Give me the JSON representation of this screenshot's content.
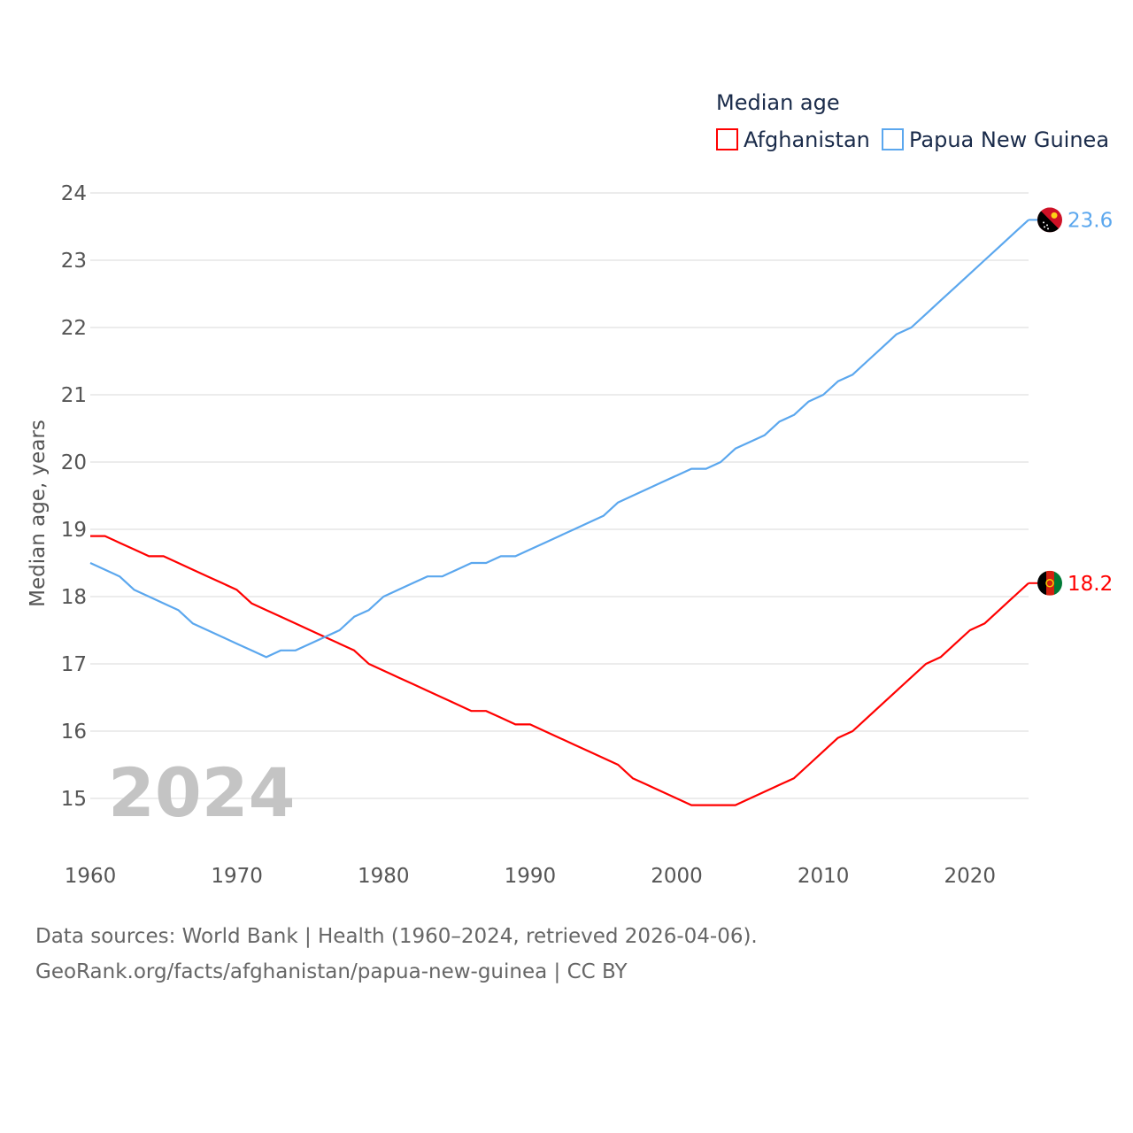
{
  "chart_data": {
    "type": "line",
    "title": "",
    "xlabel": "",
    "ylabel": "Median age, years",
    "xlim": [
      1960,
      2024
    ],
    "ylim": [
      14,
      24
    ],
    "yticks": [
      15,
      16,
      17,
      18,
      19,
      20,
      21,
      22,
      23,
      24
    ],
    "xticks": [
      1960,
      1970,
      1980,
      1990,
      2000,
      2010,
      2020
    ],
    "grid": true,
    "legend": {
      "title": "Median age",
      "placement": "top-right"
    },
    "year_watermark": "2024",
    "x": [
      1960,
      1961,
      1962,
      1963,
      1964,
      1965,
      1966,
      1967,
      1968,
      1969,
      1970,
      1971,
      1972,
      1973,
      1974,
      1975,
      1976,
      1977,
      1978,
      1979,
      1980,
      1981,
      1982,
      1983,
      1984,
      1985,
      1986,
      1987,
      1988,
      1989,
      1990,
      1991,
      1992,
      1993,
      1994,
      1995,
      1996,
      1997,
      1998,
      1999,
      2000,
      2001,
      2002,
      2003,
      2004,
      2005,
      2006,
      2007,
      2008,
      2009,
      2010,
      2011,
      2012,
      2013,
      2014,
      2015,
      2016,
      2017,
      2018,
      2019,
      2020,
      2021,
      2022,
      2023,
      2024
    ],
    "series": [
      {
        "name": "Afghanistan",
        "color": "#ff0000",
        "end_label": "18.2",
        "values": [
          18.9,
          18.9,
          18.8,
          18.7,
          18.6,
          18.6,
          18.5,
          18.4,
          18.3,
          18.2,
          18.1,
          17.9,
          17.8,
          17.7,
          17.6,
          17.5,
          17.4,
          17.3,
          17.2,
          17.0,
          16.9,
          16.8,
          16.7,
          16.6,
          16.5,
          16.4,
          16.3,
          16.3,
          16.2,
          16.1,
          16.1,
          16.0,
          15.9,
          15.8,
          15.7,
          15.6,
          15.5,
          15.3,
          15.2,
          15.1,
          15.0,
          14.9,
          14.9,
          14.9,
          14.9,
          15.0,
          15.1,
          15.2,
          15.3,
          15.5,
          15.7,
          15.9,
          16.0,
          16.2,
          16.4,
          16.6,
          16.8,
          17.0,
          17.1,
          17.3,
          17.5,
          17.6,
          17.8,
          18.0,
          18.2
        ]
      },
      {
        "name": "Papua New Guinea",
        "color": "#5ba7ee",
        "end_label": "23.6",
        "values": [
          18.5,
          18.4,
          18.3,
          18.1,
          18.0,
          17.9,
          17.8,
          17.6,
          17.5,
          17.4,
          17.3,
          17.2,
          17.1,
          17.2,
          17.2,
          17.3,
          17.4,
          17.5,
          17.7,
          17.8,
          18.0,
          18.1,
          18.2,
          18.3,
          18.3,
          18.4,
          18.5,
          18.5,
          18.6,
          18.6,
          18.7,
          18.8,
          18.9,
          19.0,
          19.1,
          19.2,
          19.4,
          19.5,
          19.6,
          19.7,
          19.8,
          19.9,
          19.9,
          20.0,
          20.2,
          20.3,
          20.4,
          20.6,
          20.7,
          20.9,
          21.0,
          21.2,
          21.3,
          21.5,
          21.7,
          21.9,
          22.0,
          22.2,
          22.4,
          22.6,
          22.8,
          23.0,
          23.2,
          23.4,
          23.6
        ]
      }
    ]
  },
  "footer": {
    "line1": "Data sources: World Bank | Health (1960–2024, retrieved 2026-04-06).",
    "line2": "GeoRank.org/facts/afghanistan/papua-new-guinea | CC BY"
  }
}
